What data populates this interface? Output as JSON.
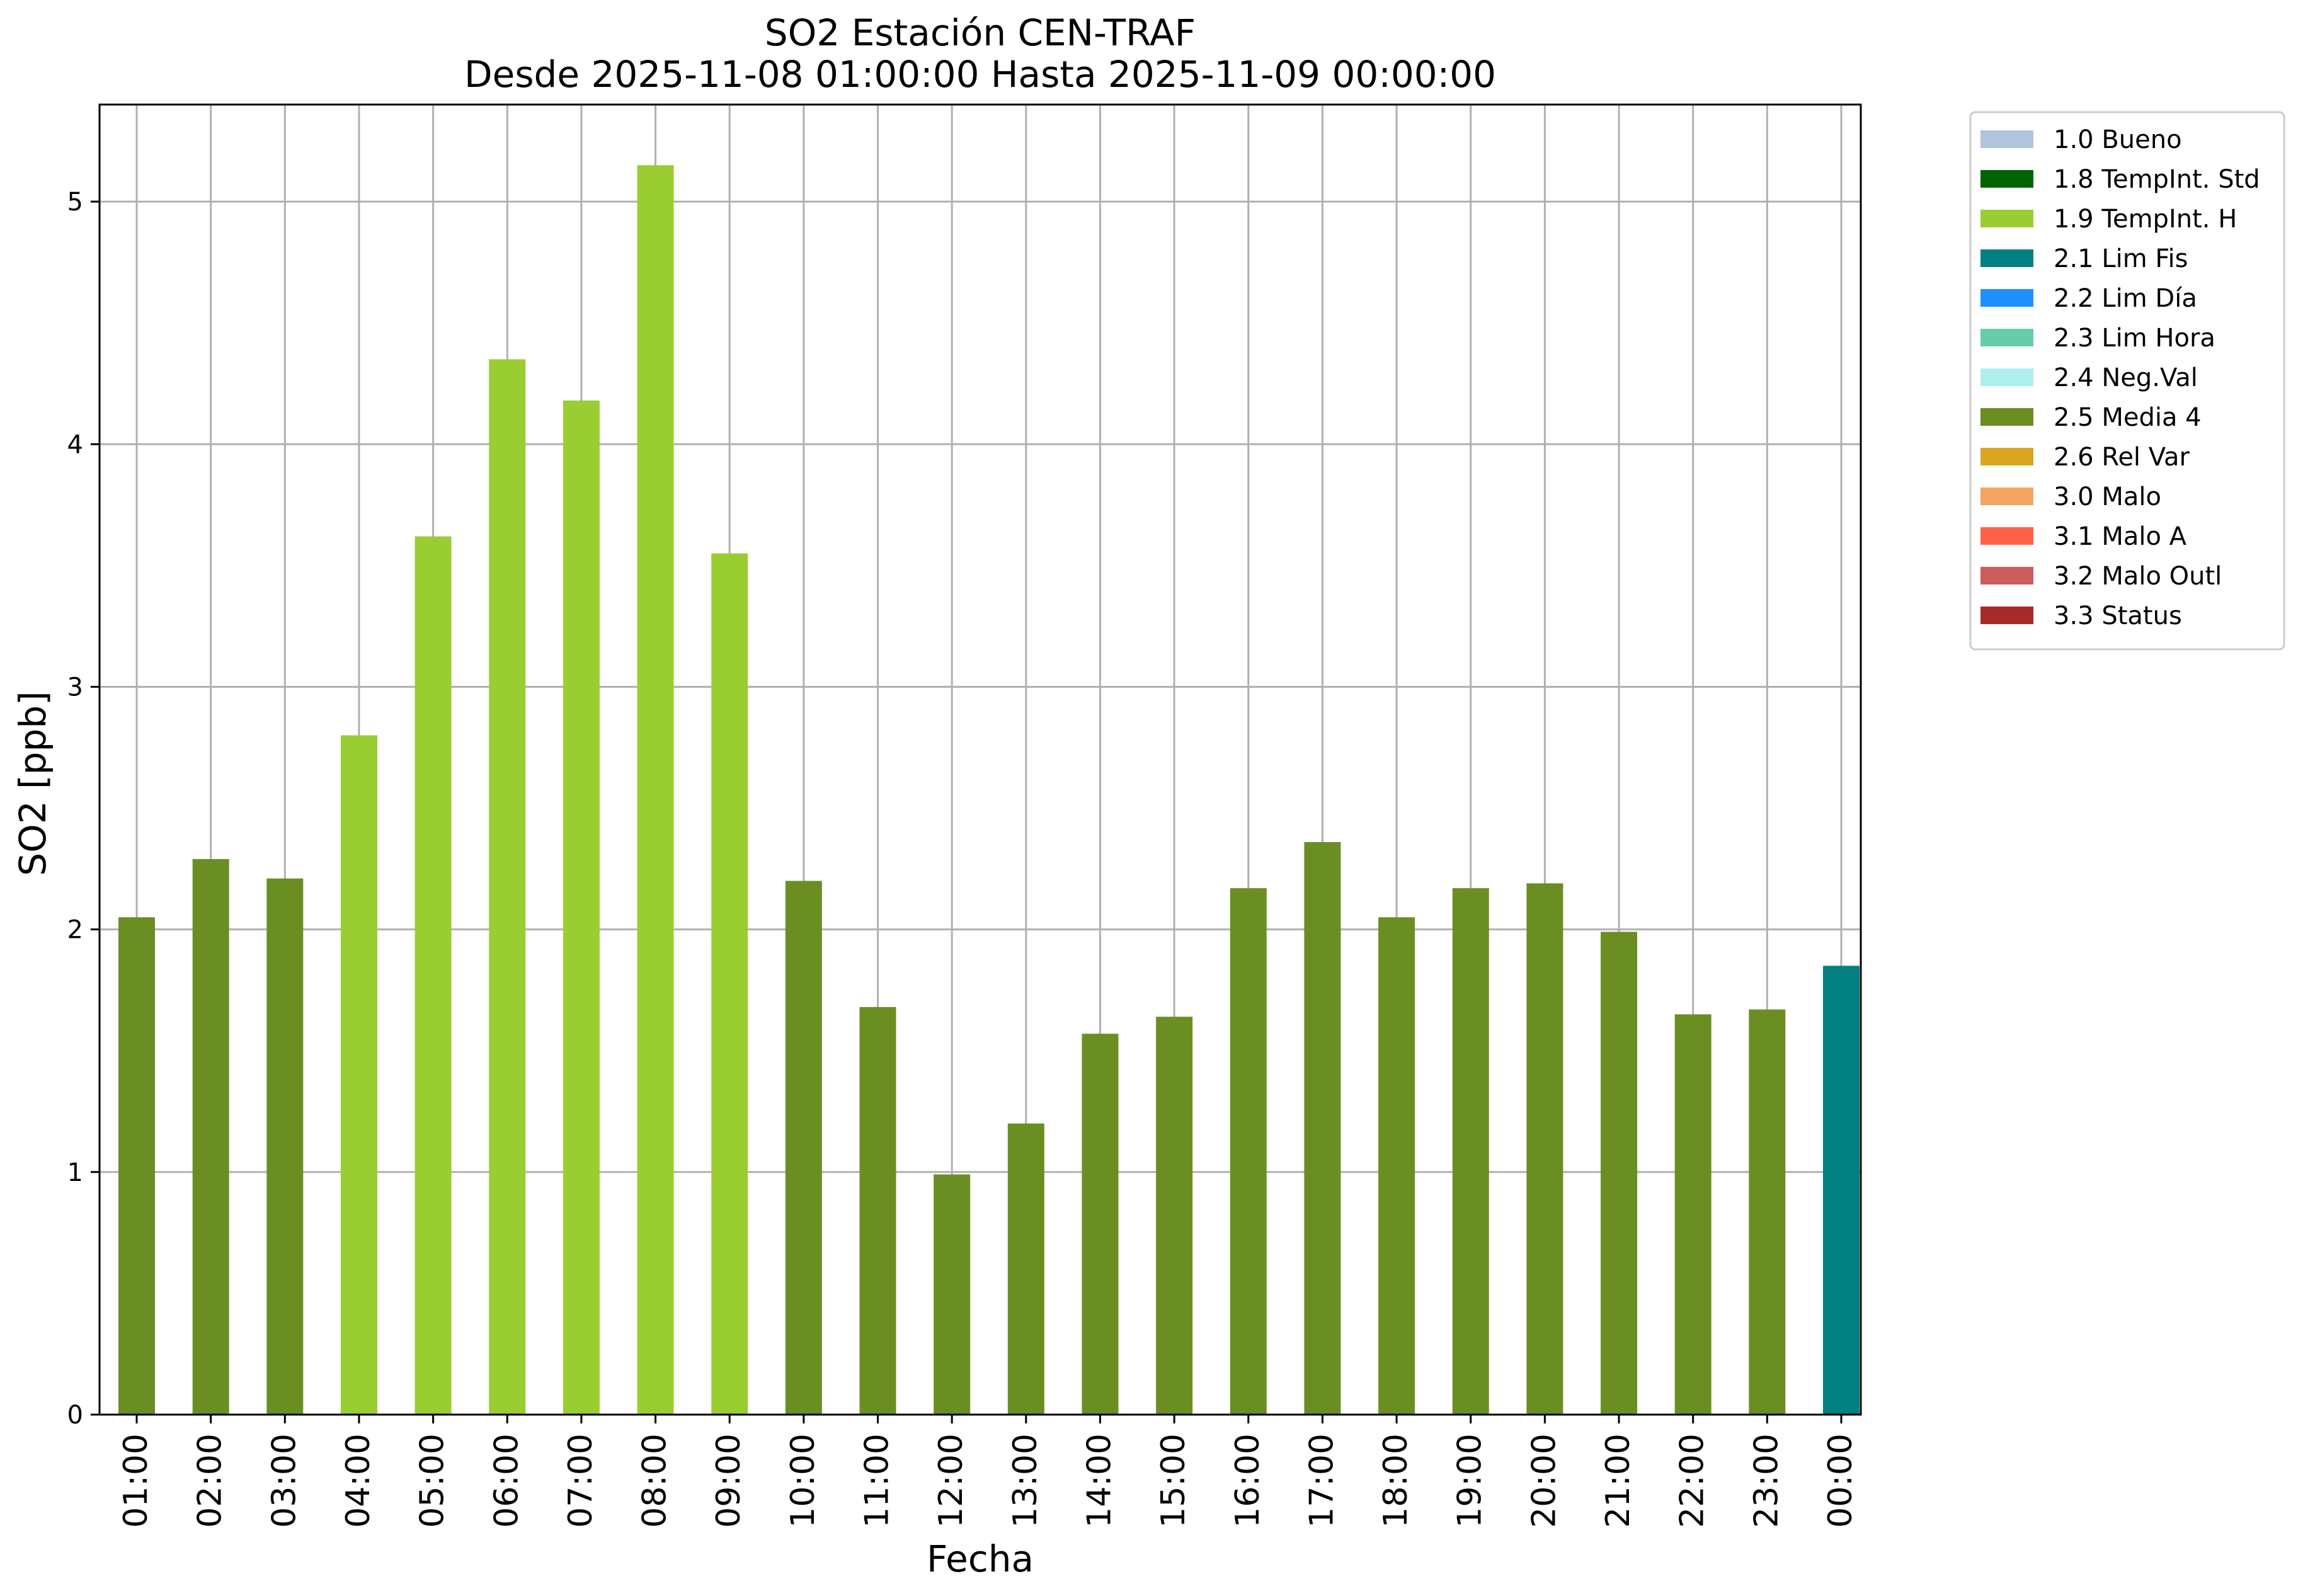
{
  "chart_data": {
    "type": "bar",
    "title_line1": "SO2 Estación CEN-TRAF",
    "title_line2": "Desde 2025-11-08 01:00:00 Hasta 2025-11-09 00:00:00",
    "xlabel": "Fecha",
    "ylabel": "SO2 [ppb]",
    "ylim": [
      0,
      5.4
    ],
    "yticks": [
      0,
      1,
      2,
      3,
      4,
      5
    ],
    "grid": true,
    "legend_position": "outside-right-top",
    "categories": [
      "01:00",
      "02:00",
      "03:00",
      "04:00",
      "05:00",
      "06:00",
      "07:00",
      "08:00",
      "09:00",
      "10:00",
      "11:00",
      "12:00",
      "13:00",
      "14:00",
      "15:00",
      "16:00",
      "17:00",
      "18:00",
      "19:00",
      "20:00",
      "21:00",
      "22:00",
      "23:00",
      "00:00"
    ],
    "values": [
      2.05,
      2.29,
      2.21,
      2.8,
      3.62,
      4.35,
      4.18,
      5.15,
      3.55,
      2.2,
      1.68,
      0.99,
      1.2,
      1.57,
      1.64,
      2.17,
      2.36,
      2.05,
      2.17,
      2.19,
      1.99,
      1.65,
      1.67,
      1.85
    ],
    "flags": [
      "2.5 Media 4",
      "2.5 Media 4",
      "2.5 Media 4",
      "1.9 TempInt. H",
      "1.9 TempInt. H",
      "1.9 TempInt. H",
      "1.9 TempInt. H",
      "1.9 TempInt. H",
      "1.9 TempInt. H",
      "2.5 Media 4",
      "2.5 Media 4",
      "2.5 Media 4",
      "2.5 Media 4",
      "2.5 Media 4",
      "2.5 Media 4",
      "2.5 Media 4",
      "2.5 Media 4",
      "2.5 Media 4",
      "2.5 Media 4",
      "2.5 Media 4",
      "2.5 Media 4",
      "2.5 Media 4",
      "2.5 Media 4",
      "2.1 Lim Fis"
    ],
    "legend": [
      {
        "label": "1.0 Bueno",
        "color": "#b0c4de"
      },
      {
        "label": "1.8 TempInt. Std",
        "color": "#006400"
      },
      {
        "label": "1.9 TempInt. H",
        "color": "#9acd32"
      },
      {
        "label": "2.1 Lim Fis",
        "color": "#008080"
      },
      {
        "label": "2.2 Lim Día",
        "color": "#1e90ff"
      },
      {
        "label": "2.3 Lim Hora",
        "color": "#66cdaa"
      },
      {
        "label": "2.4 Neg.Val",
        "color": "#afeeee"
      },
      {
        "label": "2.5 Media 4",
        "color": "#6b8e23"
      },
      {
        "label": "2.6 Rel Var",
        "color": "#daa520"
      },
      {
        "label": "3.0 Malo",
        "color": "#f4a460"
      },
      {
        "label": "3.1 Malo A",
        "color": "#ff6347"
      },
      {
        "label": "3.2 Malo Outl",
        "color": "#cd5c5c"
      },
      {
        "label": "3.3 Status",
        "color": "#a52a2a"
      }
    ]
  }
}
